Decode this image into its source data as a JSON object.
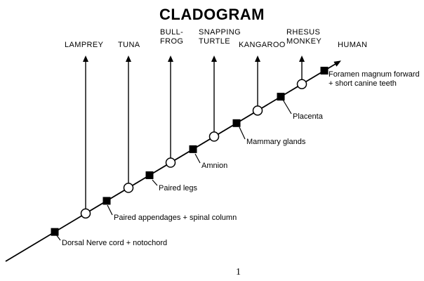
{
  "title": "CLADOGRAM",
  "page_number": "1",
  "taxa": [
    {
      "label": "LAMPREY"
    },
    {
      "label": "TUNA"
    },
    {
      "label": "BULL-\nFROG"
    },
    {
      "label": "SNAPPING\nTURTLE"
    },
    {
      "label": "KANGAROO"
    },
    {
      "label": "RHESUS\nMONKEY"
    },
    {
      "label": "HUMAN"
    }
  ],
  "traits": [
    {
      "label": "Dorsal Nerve cord + notochord"
    },
    {
      "label": "Paired appendages + spinal column"
    },
    {
      "label": "Paired legs"
    },
    {
      "label": "Amnion"
    },
    {
      "label": "Mammary glands"
    },
    {
      "label": "Placenta"
    },
    {
      "label": "Foramen magnum forward\n+ short canine teeth"
    }
  ],
  "colors": {
    "line": "#000000",
    "marker_fill": "#000000",
    "node_fill": "#ffffff",
    "text": "#000000",
    "background": "#ffffff"
  }
}
